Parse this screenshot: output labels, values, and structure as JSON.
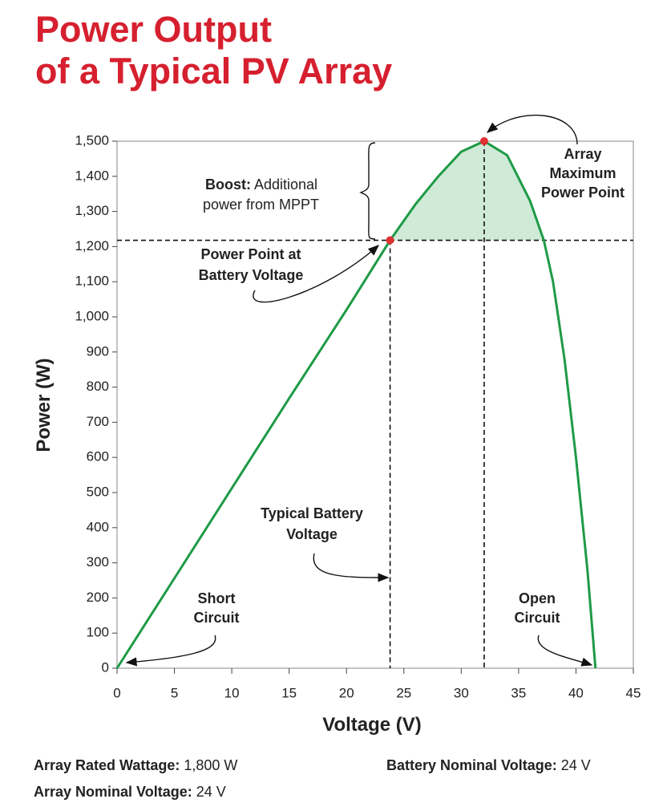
{
  "chart_data": {
    "type": "line",
    "title": [
      "Power Output",
      "of a Typical PV Array"
    ],
    "xlabel": "Voltage (V)",
    "ylabel": "Power (W)",
    "x": [
      0,
      5,
      10,
      15,
      20,
      23.8,
      26,
      28,
      30,
      32,
      34,
      36,
      37.2,
      38,
      39,
      40,
      41,
      41.7
    ],
    "values": [
      0,
      256,
      512,
      768,
      1020,
      1218,
      1320,
      1400,
      1470,
      1500,
      1460,
      1330,
      1218,
      1100,
      880,
      600,
      280,
      0
    ],
    "color": "#1e9a46",
    "boost_color": "#cfead6",
    "point_color": "#e03030",
    "xlim": [
      0,
      45
    ],
    "xticks": [
      0,
      5,
      10,
      15,
      20,
      25,
      30,
      35,
      40,
      45
    ],
    "ylim": [
      0,
      1500
    ],
    "yticks": [
      0,
      100,
      200,
      300,
      400,
      500,
      600,
      700,
      800,
      900,
      {
        "value": 1000,
        "label": "1,000"
      },
      {
        "value": 1100,
        "label": "1,100"
      },
      {
        "value": 1200,
        "label": "1,200"
      },
      {
        "value": 1300,
        "label": "1,300"
      },
      {
        "value": 1400,
        "label": "1,400"
      },
      {
        "value": 1500,
        "label": "1,500"
      }
    ],
    "max_point": {
      "x": 32,
      "y": 1500
    },
    "battery_point": {
      "x": 23.8,
      "y": 1218
    },
    "annotations": {
      "boost_bold": "Boost:",
      "boost_text": [
        "Additional",
        "power from MPPT"
      ],
      "max_power": [
        "Array",
        "Maximum",
        "Power Point"
      ],
      "battery_power": [
        "Power Point at",
        "Battery Voltage"
      ],
      "battery_voltage": [
        "Typical Battery",
        "Voltage"
      ],
      "short_circuit": [
        "Short",
        "Circuit"
      ],
      "open_circuit": [
        "Open",
        "Circuit"
      ]
    }
  },
  "notes": [
    {
      "label": "Array Rated Wattage:",
      "value": "1,800 W"
    },
    {
      "label": "Array Nominal Voltage:",
      "value": "24 V"
    },
    {
      "label": "Battery Nominal Voltage:",
      "value": "24 V"
    }
  ]
}
